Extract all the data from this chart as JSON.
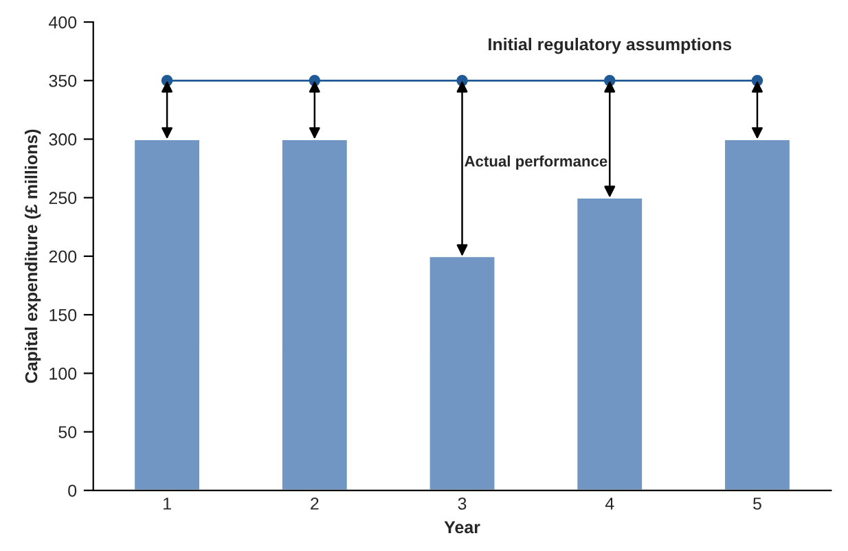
{
  "chart_data": {
    "type": "bar",
    "xlabel": "Year",
    "ylabel": "Capital expenditure (£ millions)",
    "categories": [
      "1",
      "2",
      "3",
      "4",
      "5"
    ],
    "series": [
      {
        "color": "#7296c4",
        "values": [
          300,
          300,
          200,
          250,
          300
        ]
      },
      {
        "type": "line",
        "color": "#1f5a96",
        "marker": "circle",
        "values": [
          350,
          350,
          350,
          350,
          350
        ]
      }
    ],
    "ylim": [
      0,
      400
    ],
    "yticks": [
      0,
      50,
      100,
      150,
      200,
      250,
      300,
      350,
      400
    ],
    "grid": false,
    "legend": false,
    "annotations": [
      {
        "text": "Initial regulatory assumptions",
        "x": "4",
        "y": 350
      },
      "Actual performance"
    ]
  }
}
